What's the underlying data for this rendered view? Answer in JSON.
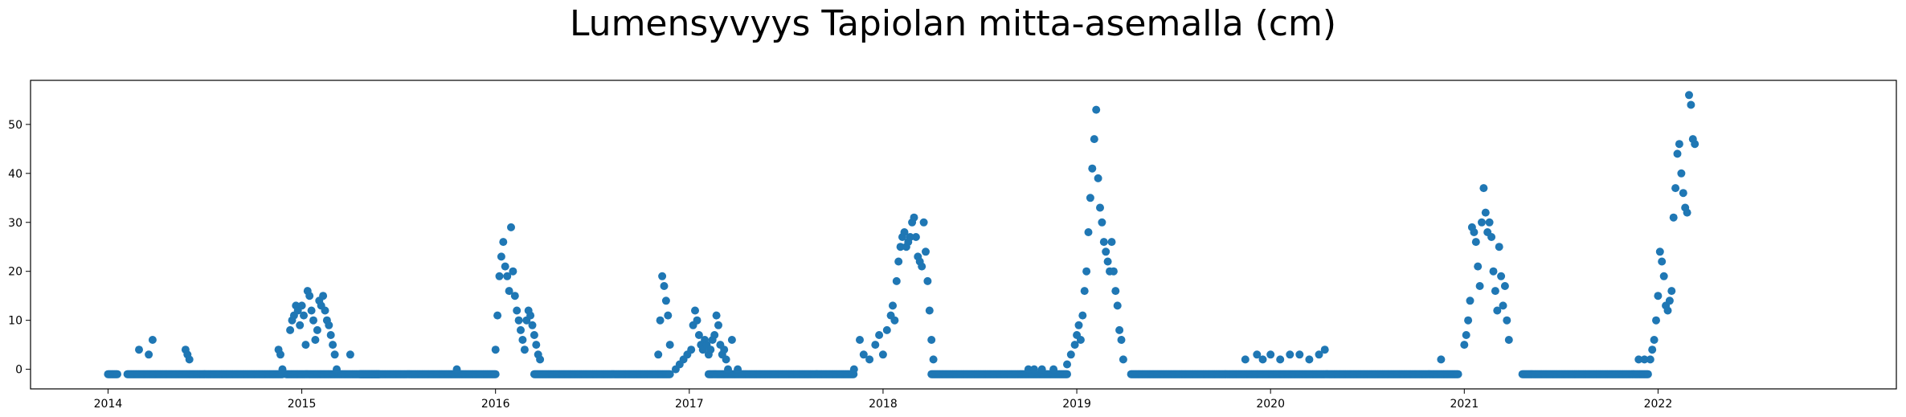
{
  "chart_data": {
    "type": "scatter",
    "title": "Lumensyvyys Tapiolan mitta-asemalla (cm)",
    "xlabel": "",
    "ylabel": "",
    "xlim": [
      2013.6,
      2023.23
    ],
    "ylim": [
      -4,
      59
    ],
    "x_ticks": [
      2014,
      2015,
      2016,
      2017,
      2018,
      2019,
      2020,
      2021,
      2022
    ],
    "x_tick_labels": [
      "2014",
      "2015",
      "2016",
      "2017",
      "2018",
      "2019",
      "2020",
      "2021",
      "2022"
    ],
    "y_ticks": [
      0,
      10,
      20,
      30,
      40,
      50
    ],
    "y_tick_labels": [
      "0",
      "10",
      "20",
      "30",
      "40",
      "50"
    ],
    "grid": false,
    "marker_color": "#1f77b4",
    "baseline_value": -1,
    "baseline_runs": [
      [
        2014.0,
        2014.05
      ],
      [
        2014.1,
        2014.9
      ],
      [
        2014.92,
        2015.4
      ],
      [
        2015.3,
        2016.0
      ],
      [
        2016.2,
        2016.9
      ],
      [
        2017.1,
        2017.85
      ],
      [
        2018.25,
        2018.95
      ],
      [
        2019.28,
        2020.97
      ],
      [
        2021.3,
        2021.95
      ]
    ],
    "series": [
      {
        "points": [
          [
            2014.16,
            4
          ],
          [
            2014.21,
            3
          ],
          [
            2014.23,
            6
          ],
          [
            2014.4,
            4
          ],
          [
            2014.41,
            3
          ],
          [
            2014.42,
            2
          ],
          [
            2014.88,
            4
          ],
          [
            2014.89,
            3
          ],
          [
            2014.9,
            0
          ],
          [
            2014.94,
            8
          ],
          [
            2014.95,
            10
          ],
          [
            2014.96,
            11
          ],
          [
            2014.97,
            13
          ],
          [
            2014.98,
            12
          ],
          [
            2014.99,
            9
          ],
          [
            2015.0,
            13
          ],
          [
            2015.01,
            11
          ],
          [
            2015.02,
            5
          ],
          [
            2015.03,
            16
          ],
          [
            2015.04,
            15
          ],
          [
            2015.05,
            12
          ],
          [
            2015.06,
            10
          ],
          [
            2015.07,
            6
          ],
          [
            2015.08,
            8
          ],
          [
            2015.09,
            14
          ],
          [
            2015.1,
            13
          ],
          [
            2015.11,
            15
          ],
          [
            2015.12,
            12
          ],
          [
            2015.13,
            10
          ],
          [
            2015.14,
            9
          ],
          [
            2015.15,
            7
          ],
          [
            2015.16,
            5
          ],
          [
            2015.17,
            3
          ],
          [
            2015.18,
            0
          ],
          [
            2015.25,
            3
          ],
          [
            2015.8,
            0
          ],
          [
            2016.0,
            4
          ],
          [
            2016.01,
            11
          ],
          [
            2016.02,
            19
          ],
          [
            2016.03,
            23
          ],
          [
            2016.04,
            26
          ],
          [
            2016.05,
            21
          ],
          [
            2016.06,
            19
          ],
          [
            2016.07,
            16
          ],
          [
            2016.08,
            29
          ],
          [
            2016.09,
            20
          ],
          [
            2016.1,
            15
          ],
          [
            2016.11,
            12
          ],
          [
            2016.12,
            10
          ],
          [
            2016.13,
            8
          ],
          [
            2016.14,
            6
          ],
          [
            2016.15,
            4
          ],
          [
            2016.16,
            10
          ],
          [
            2016.17,
            12
          ],
          [
            2016.18,
            11
          ],
          [
            2016.19,
            9
          ],
          [
            2016.2,
            7
          ],
          [
            2016.21,
            5
          ],
          [
            2016.22,
            3
          ],
          [
            2016.23,
            2
          ],
          [
            2016.84,
            3
          ],
          [
            2016.85,
            10
          ],
          [
            2016.86,
            19
          ],
          [
            2016.87,
            17
          ],
          [
            2016.88,
            14
          ],
          [
            2016.89,
            11
          ],
          [
            2016.9,
            5
          ],
          [
            2016.93,
            0
          ],
          [
            2016.95,
            1
          ],
          [
            2016.97,
            2
          ],
          [
            2016.99,
            3
          ],
          [
            2017.01,
            4
          ],
          [
            2017.02,
            9
          ],
          [
            2017.03,
            12
          ],
          [
            2017.04,
            10
          ],
          [
            2017.05,
            7
          ],
          [
            2017.06,
            5
          ],
          [
            2017.07,
            4
          ],
          [
            2017.08,
            6
          ],
          [
            2017.09,
            5
          ],
          [
            2017.1,
            3
          ],
          [
            2017.11,
            4
          ],
          [
            2017.12,
            6
          ],
          [
            2017.13,
            7
          ],
          [
            2017.14,
            11
          ],
          [
            2017.15,
            9
          ],
          [
            2017.16,
            5
          ],
          [
            2017.17,
            3
          ],
          [
            2017.18,
            4
          ],
          [
            2017.19,
            2
          ],
          [
            2017.2,
            0
          ],
          [
            2017.22,
            6
          ],
          [
            2017.25,
            0
          ],
          [
            2017.85,
            0
          ],
          [
            2017.88,
            6
          ],
          [
            2017.9,
            3
          ],
          [
            2017.93,
            2
          ],
          [
            2017.96,
            5
          ],
          [
            2017.98,
            7
          ],
          [
            2018.0,
            3
          ],
          [
            2018.02,
            8
          ],
          [
            2018.04,
            11
          ],
          [
            2018.05,
            13
          ],
          [
            2018.06,
            10
          ],
          [
            2018.07,
            18
          ],
          [
            2018.08,
            22
          ],
          [
            2018.09,
            25
          ],
          [
            2018.1,
            27
          ],
          [
            2018.11,
            28
          ],
          [
            2018.12,
            25
          ],
          [
            2018.13,
            26
          ],
          [
            2018.14,
            27
          ],
          [
            2018.15,
            30
          ],
          [
            2018.16,
            31
          ],
          [
            2018.17,
            27
          ],
          [
            2018.18,
            23
          ],
          [
            2018.19,
            22
          ],
          [
            2018.2,
            21
          ],
          [
            2018.21,
            30
          ],
          [
            2018.22,
            24
          ],
          [
            2018.23,
            18
          ],
          [
            2018.24,
            12
          ],
          [
            2018.25,
            6
          ],
          [
            2018.26,
            2
          ],
          [
            2018.75,
            0
          ],
          [
            2018.78,
            0
          ],
          [
            2018.82,
            0
          ],
          [
            2018.88,
            0
          ],
          [
            2018.95,
            1
          ],
          [
            2018.97,
            3
          ],
          [
            2018.99,
            5
          ],
          [
            2019.0,
            7
          ],
          [
            2019.01,
            9
          ],
          [
            2019.02,
            6
          ],
          [
            2019.03,
            11
          ],
          [
            2019.04,
            16
          ],
          [
            2019.05,
            20
          ],
          [
            2019.06,
            28
          ],
          [
            2019.07,
            35
          ],
          [
            2019.08,
            41
          ],
          [
            2019.09,
            47
          ],
          [
            2019.1,
            53
          ],
          [
            2019.11,
            39
          ],
          [
            2019.12,
            33
          ],
          [
            2019.13,
            30
          ],
          [
            2019.14,
            26
          ],
          [
            2019.15,
            24
          ],
          [
            2019.16,
            22
          ],
          [
            2019.17,
            20
          ],
          [
            2019.18,
            26
          ],
          [
            2019.19,
            20
          ],
          [
            2019.2,
            16
          ],
          [
            2019.21,
            13
          ],
          [
            2019.22,
            8
          ],
          [
            2019.23,
            6
          ],
          [
            2019.24,
            2
          ],
          [
            2019.87,
            2
          ],
          [
            2019.93,
            3
          ],
          [
            2019.96,
            2
          ],
          [
            2020.0,
            3
          ],
          [
            2020.05,
            2
          ],
          [
            2020.1,
            3
          ],
          [
            2020.15,
            3
          ],
          [
            2020.2,
            2
          ],
          [
            2020.25,
            3
          ],
          [
            2020.28,
            4
          ],
          [
            2020.88,
            2
          ],
          [
            2021.0,
            5
          ],
          [
            2021.01,
            7
          ],
          [
            2021.02,
            10
          ],
          [
            2021.03,
            14
          ],
          [
            2021.04,
            29
          ],
          [
            2021.05,
            28
          ],
          [
            2021.06,
            26
          ],
          [
            2021.07,
            21
          ],
          [
            2021.08,
            17
          ],
          [
            2021.09,
            30
          ],
          [
            2021.1,
            37
          ],
          [
            2021.11,
            32
          ],
          [
            2021.12,
            28
          ],
          [
            2021.13,
            30
          ],
          [
            2021.14,
            27
          ],
          [
            2021.15,
            20
          ],
          [
            2021.16,
            16
          ],
          [
            2021.17,
            12
          ],
          [
            2021.18,
            25
          ],
          [
            2021.19,
            19
          ],
          [
            2021.2,
            13
          ],
          [
            2021.21,
            17
          ],
          [
            2021.22,
            10
          ],
          [
            2021.23,
            6
          ],
          [
            2021.9,
            2
          ],
          [
            2021.93,
            2
          ],
          [
            2021.96,
            2
          ],
          [
            2021.97,
            4
          ],
          [
            2021.98,
            6
          ],
          [
            2021.99,
            10
          ],
          [
            2022.0,
            15
          ],
          [
            2022.01,
            24
          ],
          [
            2022.02,
            22
          ],
          [
            2022.03,
            19
          ],
          [
            2022.04,
            13
          ],
          [
            2022.05,
            12
          ],
          [
            2022.06,
            14
          ],
          [
            2022.07,
            16
          ],
          [
            2022.08,
            31
          ],
          [
            2022.09,
            37
          ],
          [
            2022.1,
            44
          ],
          [
            2022.11,
            46
          ],
          [
            2022.12,
            40
          ],
          [
            2022.13,
            36
          ],
          [
            2022.14,
            33
          ],
          [
            2022.15,
            32
          ],
          [
            2022.16,
            56
          ],
          [
            2022.17,
            54
          ],
          [
            2022.18,
            47
          ],
          [
            2022.19,
            46
          ]
        ]
      }
    ]
  }
}
